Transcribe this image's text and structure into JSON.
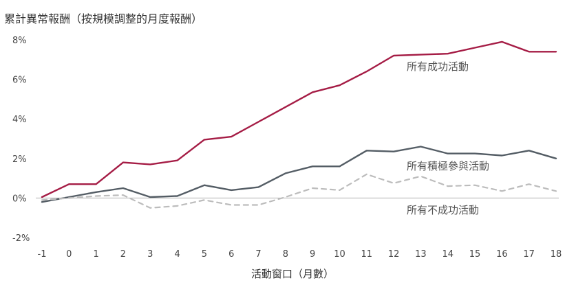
{
  "chart_data": {
    "type": "line",
    "title": "累計異常報酬（按規模調整的月度報酬）",
    "xlabel": "活動窗口（月數）",
    "ylabel": "",
    "x": [
      -1,
      0,
      1,
      2,
      3,
      4,
      5,
      6,
      7,
      8,
      9,
      10,
      11,
      12,
      13,
      14,
      15,
      16,
      17,
      18
    ],
    "xlim": [
      -1,
      18
    ],
    "ylim": [
      -2,
      8
    ],
    "y_ticks": [
      {
        "value": 8,
        "label": "8%"
      },
      {
        "value": 6,
        "label": "6%"
      },
      {
        "value": 4,
        "label": "4%"
      },
      {
        "value": 2,
        "label": "2%"
      },
      {
        "value": 0,
        "label": "0%"
      },
      {
        "value": -2,
        "label": "-2%"
      }
    ],
    "grid": false,
    "zero_line": true,
    "series": [
      {
        "name": "所有成功活動",
        "color": "#a51c45",
        "style": "solid",
        "values": [
          0.05,
          0.7,
          0.7,
          1.8,
          1.7,
          1.9,
          2.95,
          3.1,
          3.85,
          4.6,
          5.35,
          5.7,
          6.4,
          7.2,
          7.25,
          7.3,
          7.6,
          7.9,
          7.4,
          7.4
        ]
      },
      {
        "name": "所有積極參與活動",
        "color": "#545d65",
        "style": "solid",
        "values": [
          -0.2,
          0.05,
          0.3,
          0.5,
          0.05,
          0.1,
          0.65,
          0.4,
          0.55,
          1.25,
          1.6,
          1.6,
          2.4,
          2.35,
          2.6,
          2.25,
          2.25,
          2.15,
          2.4,
          2.0
        ]
      },
      {
        "name": "所有不成功活動",
        "color": "#bcbcbc",
        "style": "dashed",
        "values": [
          -0.1,
          0.0,
          0.1,
          0.15,
          -0.5,
          -0.4,
          -0.1,
          -0.35,
          -0.35,
          0.05,
          0.5,
          0.4,
          1.2,
          0.75,
          1.1,
          0.6,
          0.65,
          0.35,
          0.7,
          0.35
        ]
      }
    ]
  }
}
